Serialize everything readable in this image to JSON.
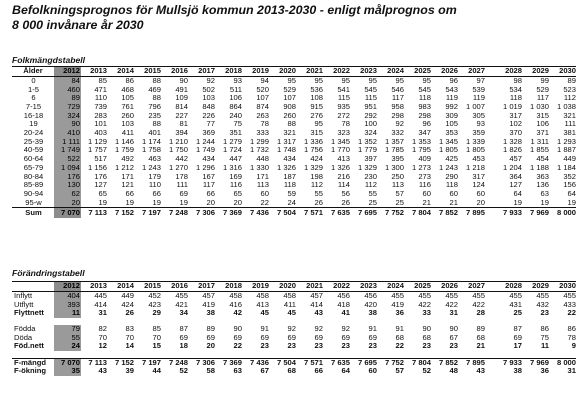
{
  "title": {
    "line1": "Befolkningsprognos för Mullsjö kommun 2013-2030 - enligt målprognos om",
    "line2": "8 000 invånare år 2030"
  },
  "folk": {
    "section_label": "Folkmängdstabell",
    "header_label": "Ålder",
    "years": [
      "2012",
      "2013",
      "2014",
      "2015",
      "2016",
      "2017",
      "2018",
      "2019",
      "2020",
      "2021",
      "2022",
      "2023",
      "2024",
      "2025",
      "2026",
      "2027",
      "2028",
      "2029",
      "2030"
    ],
    "rows": [
      {
        "label": "0",
        "values": [
          "84",
          "85",
          "86",
          "88",
          "90",
          "92",
          "93",
          "94",
          "95",
          "95",
          "95",
          "95",
          "95",
          "95",
          "96",
          "97",
          "98",
          "99",
          "89"
        ]
      },
      {
        "label": "1-5",
        "values": [
          "460",
          "471",
          "468",
          "469",
          "491",
          "502",
          "511",
          "520",
          "529",
          "536",
          "541",
          "545",
          "546",
          "545",
          "543",
          "539",
          "534",
          "529",
          "523"
        ]
      },
      {
        "label": "6",
        "values": [
          "89",
          "110",
          "105",
          "88",
          "109",
          "103",
          "106",
          "107",
          "107",
          "108",
          "115",
          "115",
          "117",
          "118",
          "119",
          "119",
          "118",
          "117",
          "112"
        ]
      },
      {
        "label": "7-15",
        "values": [
          "729",
          "739",
          "761",
          "796",
          "814",
          "848",
          "864",
          "874",
          "908",
          "915",
          "935",
          "951",
          "958",
          "983",
          "992",
          "1 007",
          "1 019",
          "1 030",
          "1 038"
        ]
      },
      {
        "label": "16-18",
        "values": [
          "324",
          "283",
          "260",
          "235",
          "227",
          "226",
          "240",
          "263",
          "260",
          "276",
          "272",
          "292",
          "298",
          "298",
          "309",
          "305",
          "317",
          "315",
          "321"
        ]
      },
      {
        "label": "19",
        "values": [
          "90",
          "101",
          "103",
          "88",
          "81",
          "77",
          "75",
          "78",
          "88",
          "95",
          "78",
          "100",
          "92",
          "96",
          "105",
          "93",
          "102",
          "106",
          "111"
        ]
      },
      {
        "label": "20-24",
        "values": [
          "410",
          "403",
          "411",
          "401",
          "394",
          "369",
          "351",
          "333",
          "321",
          "315",
          "323",
          "324",
          "332",
          "347",
          "353",
          "359",
          "370",
          "371",
          "381"
        ]
      },
      {
        "label": "25-39",
        "values": [
          "1 111",
          "1 129",
          "1 146",
          "1 174",
          "1 210",
          "1 244",
          "1 279",
          "1 299",
          "1 317",
          "1 336",
          "1 345",
          "1 352",
          "1 357",
          "1 353",
          "1 345",
          "1 339",
          "1 328",
          "1 311",
          "1 293"
        ]
      },
      {
        "label": "40-59",
        "values": [
          "1 749",
          "1 757",
          "1 759",
          "1 758",
          "1 750",
          "1 749",
          "1 724",
          "1 732",
          "1 748",
          "1 756",
          "1 770",
          "1 779",
          "1 785",
          "1 795",
          "1 805",
          "1 805",
          "1 826",
          "1 855",
          "1 887"
        ]
      },
      {
        "label": "60-64",
        "values": [
          "522",
          "517",
          "492",
          "463",
          "442",
          "434",
          "447",
          "448",
          "434",
          "424",
          "413",
          "397",
          "395",
          "409",
          "425",
          "453",
          "457",
          "454",
          "449"
        ]
      },
      {
        "label": "65-79",
        "values": [
          "1 094",
          "1 156",
          "1 212",
          "1 243",
          "1 270",
          "1 296",
          "1 316",
          "1 330",
          "1 326",
          "1 329",
          "1 326",
          "1 329",
          "1 300",
          "1 273",
          "1 243",
          "1 218",
          "1 204",
          "1 188",
          "1 184"
        ]
      },
      {
        "label": "80-84",
        "values": [
          "176",
          "176",
          "171",
          "179",
          "178",
          "167",
          "169",
          "171",
          "187",
          "198",
          "216",
          "230",
          "250",
          "273",
          "290",
          "317",
          "364",
          "363",
          "352"
        ]
      },
      {
        "label": "85-89",
        "values": [
          "130",
          "127",
          "121",
          "110",
          "111",
          "117",
          "116",
          "113",
          "118",
          "112",
          "114",
          "112",
          "113",
          "116",
          "118",
          "124",
          "127",
          "136",
          "156"
        ]
      },
      {
        "label": "90-94",
        "values": [
          "62",
          "65",
          "66",
          "66",
          "69",
          "66",
          "65",
          "60",
          "59",
          "55",
          "56",
          "55",
          "57",
          "60",
          "60",
          "60",
          "64",
          "63",
          "64"
        ]
      },
      {
        "label": "95-w",
        "values": [
          "20",
          "19",
          "19",
          "19",
          "19",
          "20",
          "20",
          "22",
          "24",
          "26",
          "26",
          "25",
          "25",
          "21",
          "21",
          "20",
          "19",
          "19",
          "19"
        ]
      }
    ],
    "sum": {
      "label": "Sum",
      "values": [
        "7 070",
        "7 113",
        "7 152",
        "7 197",
        "7 248",
        "7 306",
        "7 369",
        "7 436",
        "7 504",
        "7 571",
        "7 635",
        "7 695",
        "7 752",
        "7 804",
        "7 852",
        "7 895",
        "7 933",
        "7 969",
        "8 000"
      ]
    }
  },
  "forand": {
    "section_label": "Förändringstabell",
    "years": [
      "2012",
      "2013",
      "2014",
      "2015",
      "2016",
      "2017",
      "2018",
      "2019",
      "2020",
      "2021",
      "2022",
      "2023",
      "2024",
      "2025",
      "2026",
      "2027",
      "2028",
      "2029",
      "2030"
    ],
    "group1": [
      {
        "label": "Inflytt",
        "bold": false,
        "values": [
          "404",
          "445",
          "449",
          "452",
          "455",
          "457",
          "458",
          "458",
          "458",
          "457",
          "456",
          "456",
          "455",
          "455",
          "455",
          "455",
          "455",
          "455",
          "455"
        ]
      },
      {
        "label": "Utflytt",
        "bold": false,
        "values": [
          "393",
          "414",
          "424",
          "423",
          "421",
          "419",
          "416",
          "413",
          "411",
          "414",
          "418",
          "420",
          "419",
          "422",
          "422",
          "422",
          "431",
          "432",
          "433"
        ]
      },
      {
        "label": "Flyttnett",
        "bold": true,
        "values": [
          "11",
          "31",
          "26",
          "29",
          "34",
          "38",
          "42",
          "45",
          "45",
          "43",
          "41",
          "38",
          "36",
          "33",
          "31",
          "28",
          "25",
          "23",
          "22"
        ]
      }
    ],
    "group2": [
      {
        "label": "Födda",
        "bold": false,
        "values": [
          "79",
          "82",
          "83",
          "85",
          "87",
          "89",
          "90",
          "91",
          "92",
          "92",
          "92",
          "91",
          "91",
          "90",
          "90",
          "89",
          "87",
          "86",
          "86"
        ]
      },
      {
        "label": "Döda",
        "bold": false,
        "values": [
          "55",
          "70",
          "70",
          "70",
          "69",
          "69",
          "69",
          "69",
          "69",
          "69",
          "69",
          "69",
          "68",
          "68",
          "67",
          "68",
          "69",
          "75",
          "78"
        ]
      },
      {
        "label": "Föd.nett",
        "bold": true,
        "values": [
          "24",
          "12",
          "14",
          "15",
          "18",
          "20",
          "22",
          "23",
          "23",
          "23",
          "23",
          "23",
          "22",
          "23",
          "23",
          "21",
          "17",
          "11",
          "9"
        ]
      }
    ],
    "group3": [
      {
        "label": "F-mängd",
        "bold": true,
        "values": [
          "7 070",
          "7 113",
          "7 152",
          "7 197",
          "7 248",
          "7 306",
          "7 369",
          "7 436",
          "7 504",
          "7 571",
          "7 635",
          "7 695",
          "7 752",
          "7 804",
          "7 852",
          "7 895",
          "7 933",
          "7 969",
          "8 000"
        ]
      },
      {
        "label": "F-ökning",
        "bold": true,
        "values": [
          "35",
          "43",
          "39",
          "44",
          "52",
          "58",
          "63",
          "67",
          "68",
          "66",
          "64",
          "60",
          "57",
          "52",
          "48",
          "43",
          "38",
          "36",
          "31"
        ]
      }
    ]
  }
}
